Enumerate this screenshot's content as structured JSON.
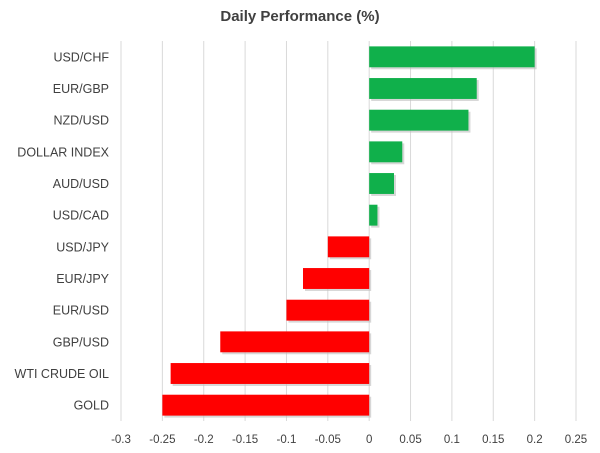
{
  "chart_data": {
    "type": "bar",
    "orientation": "horizontal",
    "title": "Daily Performance (%)",
    "xlabel": "",
    "ylabel": "",
    "categories": [
      "USD/CHF",
      "EUR/GBP",
      "NZD/USD",
      "DOLLAR INDEX",
      "AUD/USD",
      "USD/CAD",
      "USD/JPY",
      "EUR/JPY",
      "EUR/USD",
      "GBP/USD",
      "WTI CRUDE OIL",
      "GOLD"
    ],
    "values": [
      0.2,
      0.13,
      0.12,
      0.04,
      0.03,
      0.01,
      -0.05,
      -0.08,
      -0.1,
      -0.18,
      -0.24,
      -0.25
    ],
    "xlim": [
      -0.3,
      0.25
    ],
    "x_ticks": [
      -0.3,
      -0.25,
      -0.2,
      -0.15,
      -0.1,
      -0.05,
      0,
      0.05,
      0.1,
      0.15,
      0.2,
      0.25
    ],
    "x_tick_labels": [
      "-0.3",
      "-0.25",
      "-0.2",
      "-0.15",
      "-0.1",
      "-0.05",
      "0",
      "0.05",
      "0.1",
      "0.15",
      "0.2",
      "0.25"
    ],
    "grid": "vertical",
    "legend": "none",
    "colors": {
      "positive": "#10b04b",
      "negative": "#ff0000",
      "grid": "#d9d9d9",
      "text": "#404040"
    }
  }
}
